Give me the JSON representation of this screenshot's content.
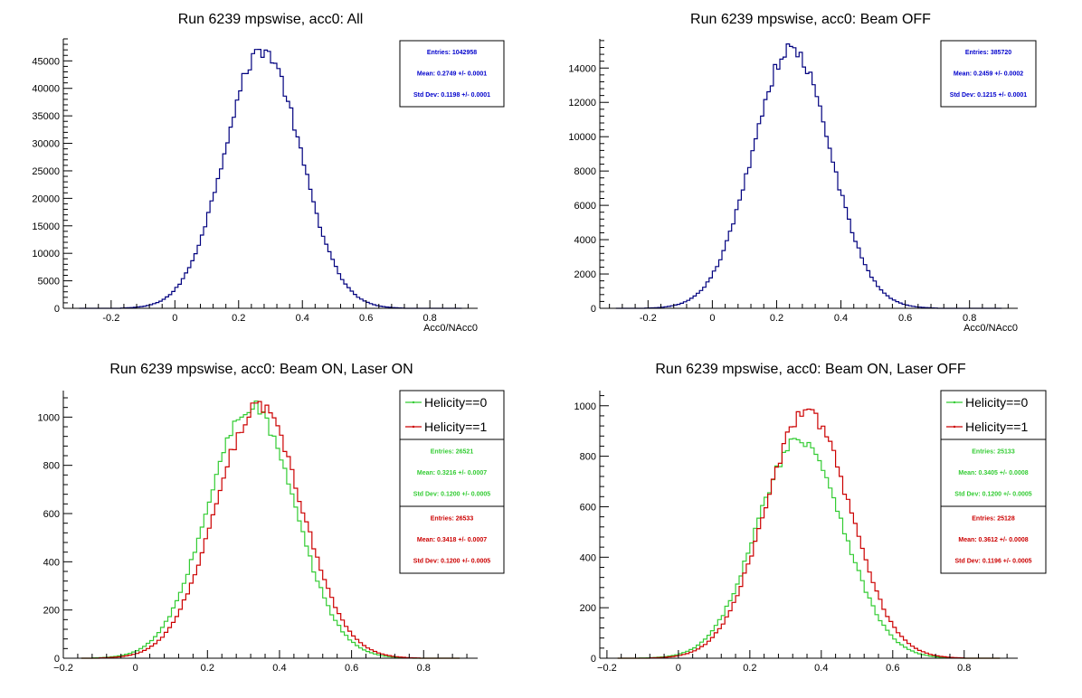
{
  "chart_data": [
    {
      "type": "histogram",
      "title": "Run 6239 mpswise, acc0: All",
      "xlabel": "Acc0/NAcc0",
      "ylabel": "",
      "xlim": [
        -0.35,
        0.95
      ],
      "ylim": [
        0,
        49000
      ],
      "xticks": [
        "-0.2",
        "0",
        "0.2",
        "0.4",
        "0.6",
        "0.8"
      ],
      "yticks": [
        "0",
        "5000",
        "10000",
        "15000",
        "20000",
        "25000",
        "30000",
        "35000",
        "40000",
        "45000"
      ],
      "series": [
        {
          "color": "#00007f",
          "mean": 0.2749,
          "sd": 0.1198,
          "peak": 47000
        }
      ],
      "stats": [
        {
          "color": "#0000cc",
          "lines": [
            "Entries: 1042958",
            "Mean: 0.2749 +/- 0.0001",
            "Std Dev: 0.1198 +/- 0.0001"
          ]
        }
      ]
    },
    {
      "type": "histogram",
      "title": "Run 6239 mpswise, acc0: Beam OFF",
      "xlabel": "Acc0/NAcc0",
      "ylabel": "",
      "xlim": [
        -0.35,
        0.95
      ],
      "ylim": [
        0,
        15700
      ],
      "xticks": [
        "-0.2",
        "0",
        "0.2",
        "0.4",
        "0.6",
        "0.8"
      ],
      "yticks": [
        "0",
        "2000",
        "4000",
        "6000",
        "8000",
        "10000",
        "12000",
        "14000"
      ],
      "series": [
        {
          "color": "#00007f",
          "mean": 0.2459,
          "sd": 0.1215,
          "peak": 15100
        }
      ],
      "stats": [
        {
          "color": "#0000cc",
          "lines": [
            "Entries: 385720",
            "Mean: 0.2459 +/- 0.0002",
            "Std Dev: 0.1215 +/- 0.0001"
          ]
        }
      ]
    },
    {
      "type": "histogram",
      "title": "Run 6239 mpswise, acc0: Beam ON, Laser ON",
      "xlabel": "",
      "ylabel": "",
      "xlim": [
        -0.2,
        0.95
      ],
      "ylim": [
        0,
        1110
      ],
      "xticks": [
        "−0.2",
        "0",
        "0.2",
        "0.4",
        "0.6",
        "0.8"
      ],
      "yticks": [
        "0",
        "200",
        "400",
        "600",
        "800",
        "1000"
      ],
      "series": [
        {
          "name": "Helicity==0",
          "color": "#33cc33",
          "mean": 0.3216,
          "sd": 0.12,
          "peak": 1045
        },
        {
          "name": "Helicity==1",
          "color": "#cc0000",
          "mean": 0.3418,
          "sd": 0.12,
          "peak": 1040
        }
      ],
      "stats": [
        {
          "color": "#33cc33",
          "lines": [
            "Entries: 26521",
            "Mean: 0.3216 +/- 0.0007",
            "Std Dev: 0.1200 +/- 0.0005"
          ]
        },
        {
          "color": "#cc0000",
          "lines": [
            "Entries: 26533",
            "Mean: 0.3418 +/- 0.0007",
            "Std Dev: 0.1200 +/- 0.0005"
          ]
        }
      ]
    },
    {
      "type": "histogram",
      "title": "Run 6239 mpswise, acc0: Beam ON, Laser OFF",
      "xlabel": "",
      "ylabel": "",
      "xlim": [
        -0.22,
        0.95
      ],
      "ylim": [
        0,
        1060
      ],
      "xticks": [
        "−0.2",
        "0",
        "0.2",
        "0.4",
        "0.6",
        "0.8"
      ],
      "yticks": [
        "0",
        "200",
        "400",
        "600",
        "800",
        "1000"
      ],
      "series": [
        {
          "name": "Helicity==0",
          "color": "#33cc33",
          "mean": 0.3405,
          "sd": 0.12,
          "peak": 870
        },
        {
          "name": "Helicity==1",
          "color": "#cc0000",
          "mean": 0.3612,
          "sd": 0.1196,
          "peak": 975
        }
      ],
      "stats": [
        {
          "color": "#33cc33",
          "lines": [
            "Entries: 25133",
            "Mean: 0.3405 +/- 0.0008",
            "Std Dev: 0.1200 +/- 0.0005"
          ]
        },
        {
          "color": "#cc0000",
          "lines": [
            "Entries: 25128",
            "Mean: 0.3612 +/- 0.0008",
            "Std Dev: 0.1196 +/- 0.0005"
          ]
        }
      ]
    }
  ]
}
